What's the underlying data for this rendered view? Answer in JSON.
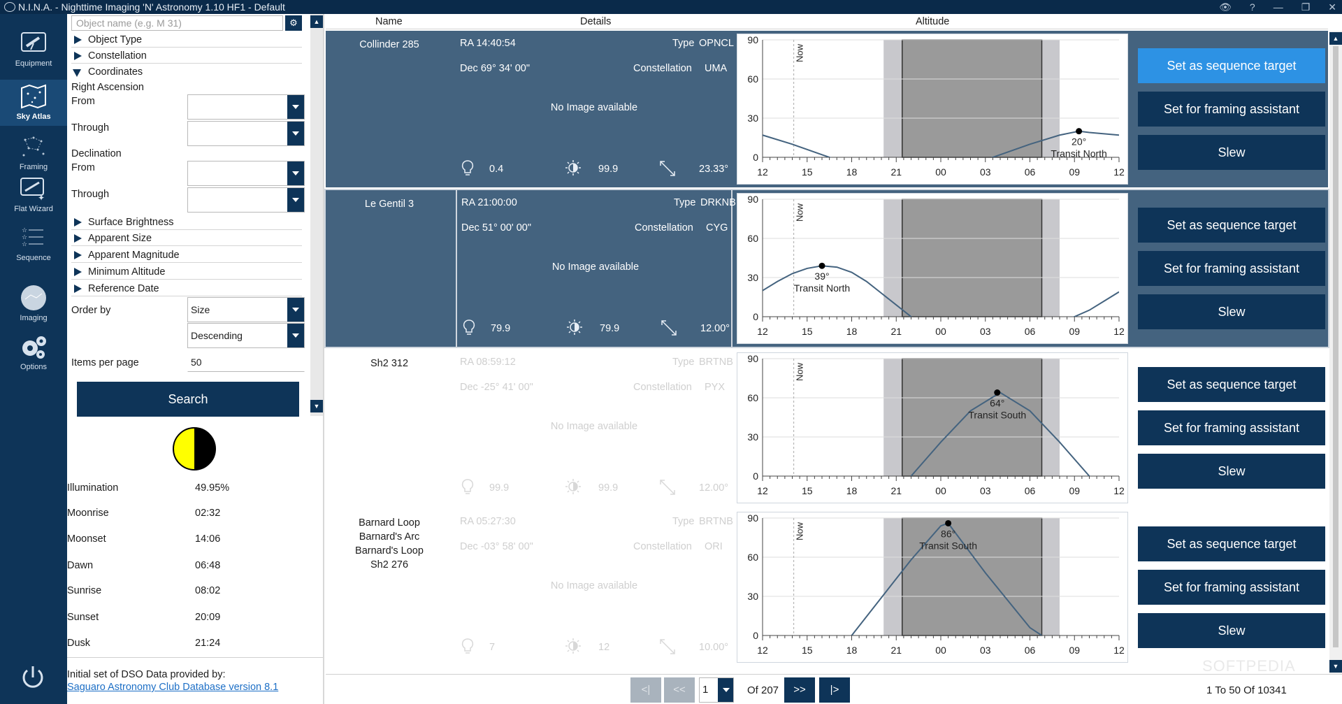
{
  "window": {
    "title": "N.I.N.A. - Nighttime Imaging 'N' Astronomy 1.10 HF1   -  Default",
    "controls": [
      "👁",
      "?",
      "—",
      "❐",
      "✕"
    ]
  },
  "nav": {
    "items": [
      {
        "label": "Equipment",
        "icon": "telescope-icon"
      },
      {
        "label": "Sky Atlas",
        "icon": "sky-atlas-icon"
      },
      {
        "label": "Framing",
        "icon": "framing-icon"
      },
      {
        "label": "Flat Wizard",
        "icon": "flat-wizard-icon"
      },
      {
        "label": "Sequence",
        "icon": "sequence-icon"
      },
      {
        "label": "Imaging",
        "icon": "imaging-icon"
      },
      {
        "label": "Options",
        "icon": "gear-icon"
      }
    ]
  },
  "filters": {
    "object_name_placeholder": "Object name (e.g. M 31)",
    "object_type": "Object Type",
    "constellation": "Constellation",
    "coordinates": "Coordinates",
    "ra": "Right Ascension",
    "from": "From",
    "through": "Through",
    "declination": "Declination",
    "surface_brightness": "Surface Brightness",
    "apparent_size": "Apparent Size",
    "apparent_magnitude": "Apparent Magnitude",
    "minimum_altitude": "Minimum Altitude",
    "reference_date": "Reference Date",
    "order_by": "Order by",
    "order_value": "Size",
    "order_dir": "Descending",
    "items_per_page": "Items per page",
    "items_value": "50",
    "search": "Search"
  },
  "moon": {
    "illumination_fraction": 0.4995,
    "rows": [
      {
        "label": "Illumination",
        "value": "49.95%"
      },
      {
        "label": "Moonrise",
        "value": "02:32"
      },
      {
        "label": "Moonset",
        "value": "14:06"
      },
      {
        "label": "Dawn",
        "value": "06:48"
      },
      {
        "label": "Sunrise",
        "value": "08:02"
      },
      {
        "label": "Sunset",
        "value": "20:09"
      },
      {
        "label": "Dusk",
        "value": "21:24"
      }
    ]
  },
  "credits": {
    "line1": "Initial set of DSO Data provided by:",
    "link": "Saguaro Astronomy Club Database version 8.1"
  },
  "columns": {
    "name": "Name",
    "details": "Details",
    "altitude": "Altitude"
  },
  "labels": {
    "type": "Type",
    "constellation": "Constellation",
    "no_image": "No Image available",
    "now": "Now"
  },
  "buttons": {
    "sequence": "Set as sequence target",
    "framing": "Set for framing assistant",
    "slew": "Slew"
  },
  "chart_common": {
    "y_ticks": [
      0,
      30,
      60,
      90
    ],
    "x_ticks": [
      "12",
      "15",
      "18",
      "21",
      "00",
      "03",
      "06",
      "09",
      "12"
    ],
    "x_hours": [
      12,
      36
    ],
    "now_hour": 14.1,
    "dusk_hour": 21.4,
    "dawn_hour": 30.8,
    "twilight_start": 20.15,
    "twilight_end": 32.0
  },
  "results": [
    {
      "names": [
        "Collinder 285"
      ],
      "ra": "RA  14:40:54",
      "dec": "Dec  69° 34' 00\"",
      "type": "OPNCL",
      "constellation": "UMA",
      "bright": "0.4",
      "sb": "99.9",
      "size": "23.33°",
      "state": "selected",
      "hl": true,
      "chart_data": {
        "type": "line",
        "x": [
          12,
          14,
          16,
          18,
          20,
          22,
          24,
          26,
          28,
          30,
          32,
          33.3,
          34,
          36
        ],
        "y": [
          17,
          10,
          2,
          -6,
          -13,
          -17,
          -14,
          -6,
          2,
          10,
          17,
          20,
          19,
          17
        ],
        "peak": {
          "x": 33.3,
          "y": 20,
          "label": "20°",
          "sub": "Transit North"
        }
      }
    },
    {
      "names": [
        "Le Gentil 3"
      ],
      "ra": "RA  21:00:00",
      "dec": "Dec  51° 00' 00\"",
      "type": "DRKNB",
      "constellation": "CYG",
      "bright": "79.9",
      "sb": "79.9",
      "size": "12.00°",
      "state": "selected2",
      "hl": false,
      "chart_data": {
        "type": "line",
        "x": [
          12,
          13,
          14,
          15,
          16,
          17,
          18,
          19,
          20,
          21,
          22,
          24,
          27,
          30,
          33,
          34,
          35,
          36
        ],
        "y": [
          20,
          27,
          33,
          37,
          39,
          38,
          34,
          27,
          18,
          9,
          0,
          -14,
          -20,
          -12,
          0,
          5,
          12,
          19
        ],
        "peak": {
          "x": 16,
          "y": 39,
          "label": "39°",
          "sub": "Transit North"
        }
      }
    },
    {
      "names": [
        "Sh2 312"
      ],
      "ra": "RA  08:59:12",
      "dec": "Dec  -25° 41' 00\"",
      "type": "BRTNB",
      "constellation": "PYX",
      "bright": "99.9",
      "sb": "99.9",
      "size": "12.00°",
      "state": "dim",
      "hl": false,
      "chart_data": {
        "type": "line",
        "x": [
          22,
          24,
          26,
          28,
          30,
          32,
          34,
          36
        ],
        "y": [
          0,
          26,
          50,
          64,
          50,
          26,
          0,
          -20
        ],
        "peak": {
          "x": 27.8,
          "y": 64,
          "label": "64°",
          "sub": "Transit South"
        }
      }
    },
    {
      "names": [
        "Barnard Loop",
        "Barnard's Arc",
        "Barnard's Loop",
        "Sh2 276"
      ],
      "ra": "RA  05:27:30",
      "dec": "Dec  -03° 58' 00\"",
      "type": "BRTNB",
      "constellation": "ORI",
      "bright": "7",
      "sb": "12",
      "size": "10.00°",
      "state": "dim",
      "hl": false,
      "chart_data": {
        "type": "line",
        "x": [
          18,
          20,
          22,
          24,
          24.5,
          27,
          30,
          30.8
        ],
        "y": [
          0,
          29,
          58,
          84,
          86,
          48,
          6,
          0
        ],
        "peak": {
          "x": 24.5,
          "y": 86,
          "label": "86°",
          "sub": "Transit South"
        }
      }
    }
  ],
  "pager": {
    "first": "<|",
    "prev": "<<",
    "page": "1",
    "of": "Of 207",
    "next": ">>",
    "last": "|>",
    "range": "1  To  50  Of  10341"
  },
  "watermark": "SOFTPEDIA"
}
